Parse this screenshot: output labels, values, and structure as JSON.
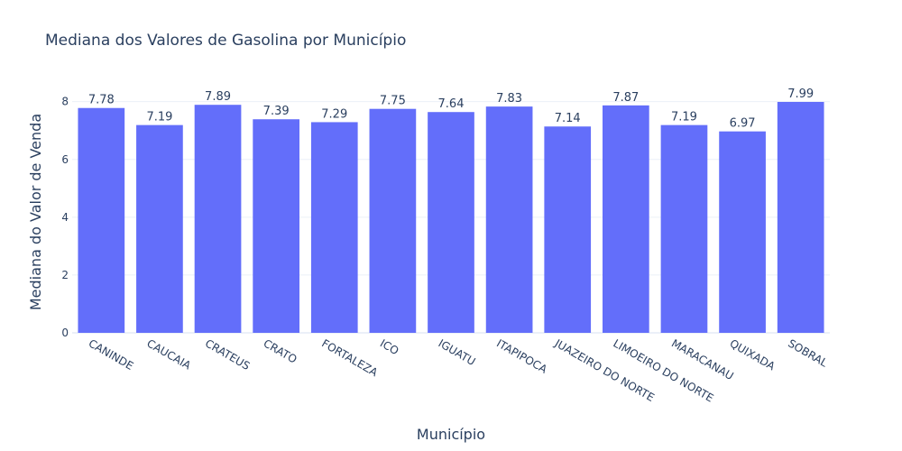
{
  "chart_data": {
    "type": "bar",
    "title": "Mediana dos Valores de Gasolina por Município",
    "xlabel": "Município",
    "ylabel": "Mediana do Valor de Venda",
    "categories": [
      "CANINDE",
      "CAUCAIA",
      "CRATEUS",
      "CRATO",
      "FORTALEZA",
      "ICO",
      "IGUATU",
      "ITAPIPOCA",
      "JUAZEIRO DO NORTE",
      "LIMOEIRO DO NORTE",
      "MARACANAU",
      "QUIXADA",
      "SOBRAL"
    ],
    "values": [
      7.78,
      7.19,
      7.89,
      7.39,
      7.29,
      7.75,
      7.64,
      7.83,
      7.14,
      7.87,
      7.19,
      6.97,
      7.99
    ],
    "data_labels": [
      "7.78",
      "7.19",
      "7.89",
      "7.39",
      "7.29",
      "7.75",
      "7.64",
      "7.83",
      "7.14",
      "7.87",
      "7.19",
      "6.97",
      "7.99"
    ],
    "ylim": [
      0,
      7.99
    ],
    "yticks": [
      0,
      2,
      4,
      6,
      8
    ],
    "ytick_labels": [
      "0",
      "2",
      "4",
      "6",
      "8"
    ],
    "grid": true,
    "bar_color": "#636efa",
    "text_color": "#2a3f5f",
    "grid_color": "#ebf0f8"
  }
}
